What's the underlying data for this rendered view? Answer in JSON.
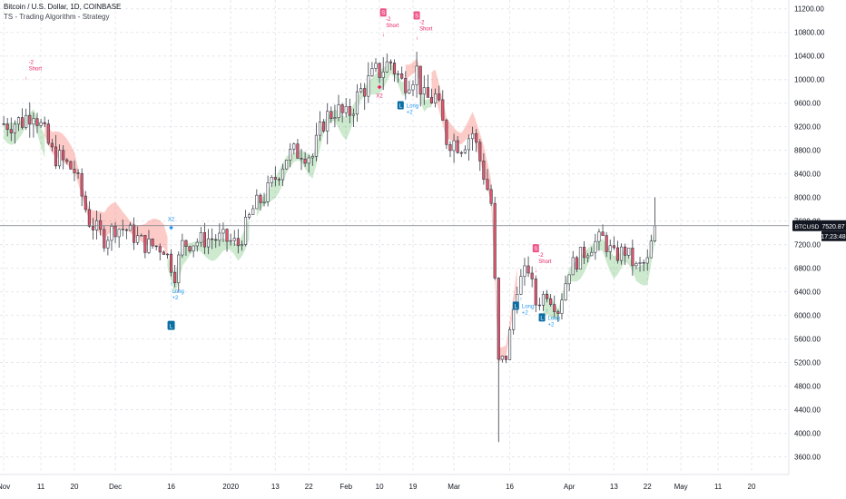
{
  "header": {
    "symbol_line": "Bitcoin / U.S. Dollar, 1D, COINBASE",
    "indicator_line": "TS - Trading Algorithm - Strategy"
  },
  "colors": {
    "up": "#ffffff",
    "down": "#e8556d",
    "wick": "#363a45",
    "long": "#2196f3",
    "short": "#e91e63",
    "band_bull": "#4caf50",
    "band_bear": "#f44336",
    "price_label_bg": "#131722"
  },
  "price_label": {
    "symbol": "BTCUSD",
    "price": "7520.87",
    "countdown": "17:23:48"
  },
  "chart_data": {
    "type": "candlestick",
    "title": "Bitcoin / U.S. Dollar, 1D, COINBASE",
    "ylim": [
      3300,
      11350
    ],
    "y_ticks": [
      3600,
      4000,
      4400,
      4800,
      5200,
      5600,
      6000,
      6400,
      6800,
      7200,
      7600,
      8000,
      8400,
      8800,
      9200,
      9600,
      10000,
      10400,
      10800,
      11200
    ],
    "y_tick_labels": [
      "3600.00",
      "4000.00",
      "4400.00",
      "4800.00",
      "5200.00",
      "5600.00",
      "6000.00",
      "6400.00",
      "6800.00",
      "7200.00",
      "7600.00",
      "8000.00",
      "8400.00",
      "8800.00",
      "9200.00",
      "9600.00",
      "10000.00",
      "10400.00",
      "10800.00",
      "11200.00"
    ],
    "x_range_days": [
      -1,
      211
    ],
    "x_ticks": [
      {
        "day": 0,
        "label": "Nov"
      },
      {
        "day": 10,
        "label": "11"
      },
      {
        "day": 19,
        "label": "20"
      },
      {
        "day": 30,
        "label": "Dec"
      },
      {
        "day": 45,
        "label": "16"
      },
      {
        "day": 61,
        "label": "2020"
      },
      {
        "day": 73,
        "label": "13"
      },
      {
        "day": 82,
        "label": "22"
      },
      {
        "day": 92,
        "label": "Feb"
      },
      {
        "day": 101,
        "label": "10"
      },
      {
        "day": 110,
        "label": "19"
      },
      {
        "day": 121,
        "label": "Mar"
      },
      {
        "day": 136,
        "label": "16"
      },
      {
        "day": 152,
        "label": "Apr"
      },
      {
        "day": 164,
        "label": "13"
      },
      {
        "day": 173,
        "label": "22"
      },
      {
        "day": 182,
        "label": "May"
      },
      {
        "day": 192,
        "label": "11"
      },
      {
        "day": 201,
        "label": "20"
      }
    ],
    "last_price": 7520.87,
    "anchors": [
      [
        0,
        9250
      ],
      [
        5,
        9300
      ],
      [
        8,
        9500
      ],
      [
        13,
        8750
      ],
      [
        19,
        8450
      ],
      [
        23,
        7600
      ],
      [
        27,
        7300
      ],
      [
        30,
        7500
      ],
      [
        33,
        7450
      ],
      [
        38,
        7200
      ],
      [
        43,
        7150
      ],
      [
        46,
        6700
      ],
      [
        48,
        7200
      ],
      [
        55,
        7300
      ],
      [
        59,
        7300
      ],
      [
        63,
        7200
      ],
      [
        67,
        7800
      ],
      [
        71,
        8100
      ],
      [
        76,
        8700
      ],
      [
        80,
        8800
      ],
      [
        83,
        8700
      ],
      [
        86,
        9300
      ],
      [
        89,
        9500
      ],
      [
        92,
        9350
      ],
      [
        96,
        9800
      ],
      [
        100,
        10100
      ],
      [
        104,
        10300
      ],
      [
        107,
        9950
      ],
      [
        111,
        10150
      ],
      [
        113,
        9650
      ],
      [
        116,
        9700
      ],
      [
        119,
        9000
      ],
      [
        123,
        8900
      ],
      [
        126,
        9100
      ],
      [
        129,
        8400
      ],
      [
        131,
        7900
      ],
      [
        133,
        5200
      ],
      [
        135,
        5300
      ],
      [
        138,
        6500
      ],
      [
        141,
        6800
      ],
      [
        143,
        6200
      ],
      [
        146,
        6400
      ],
      [
        149,
        6100
      ],
      [
        152,
        6800
      ],
      [
        155,
        7000
      ],
      [
        158,
        7200
      ],
      [
        161,
        7300
      ],
      [
        164,
        7000
      ],
      [
        167,
        7100
      ],
      [
        170,
        6800
      ],
      [
        173,
        6900
      ],
      [
        175,
        7500
      ]
    ],
    "band_bull_segments": [
      [
        0,
        11
      ],
      [
        44,
        66
      ],
      [
        68,
        108
      ],
      [
        112,
        115
      ],
      [
        145,
        175
      ]
    ],
    "band_bear_segments": [
      [
        11,
        44
      ],
      [
        108,
        112
      ],
      [
        115,
        138
      ]
    ],
    "signals": [
      {
        "day": 6,
        "kind": "short_entry",
        "labels": [
          "-2",
          "Short"
        ]
      },
      {
        "day": 45,
        "kind": "long_entry",
        "labels": [
          "Long",
          "+2"
        ]
      },
      {
        "day": 45,
        "kind": "exit_long_marker",
        "labels": [
          "X2"
        ]
      },
      {
        "day": 45,
        "kind": "long_badge",
        "labels": [
          "L"
        ]
      },
      {
        "day": 101,
        "kind": "exit_short_marker",
        "labels": [
          "X2"
        ]
      },
      {
        "day": 102,
        "kind": "short_entry",
        "labels": [
          "S",
          "-2",
          "Short"
        ]
      },
      {
        "day": 108,
        "kind": "long_entry",
        "labels": [
          "L",
          "Long",
          "+2"
        ]
      },
      {
        "day": 111,
        "kind": "short_entry",
        "labels": [
          "S",
          "-2",
          "Short"
        ]
      },
      {
        "day": 139,
        "kind": "long_entry",
        "labels": [
          "L",
          "Long",
          "+2"
        ]
      },
      {
        "day": 143,
        "kind": "short_entry",
        "labels": [
          "S",
          "-2",
          "Short"
        ]
      },
      {
        "day": 146,
        "kind": "long_entry",
        "labels": [
          "L",
          "Long",
          "+2"
        ]
      }
    ]
  }
}
